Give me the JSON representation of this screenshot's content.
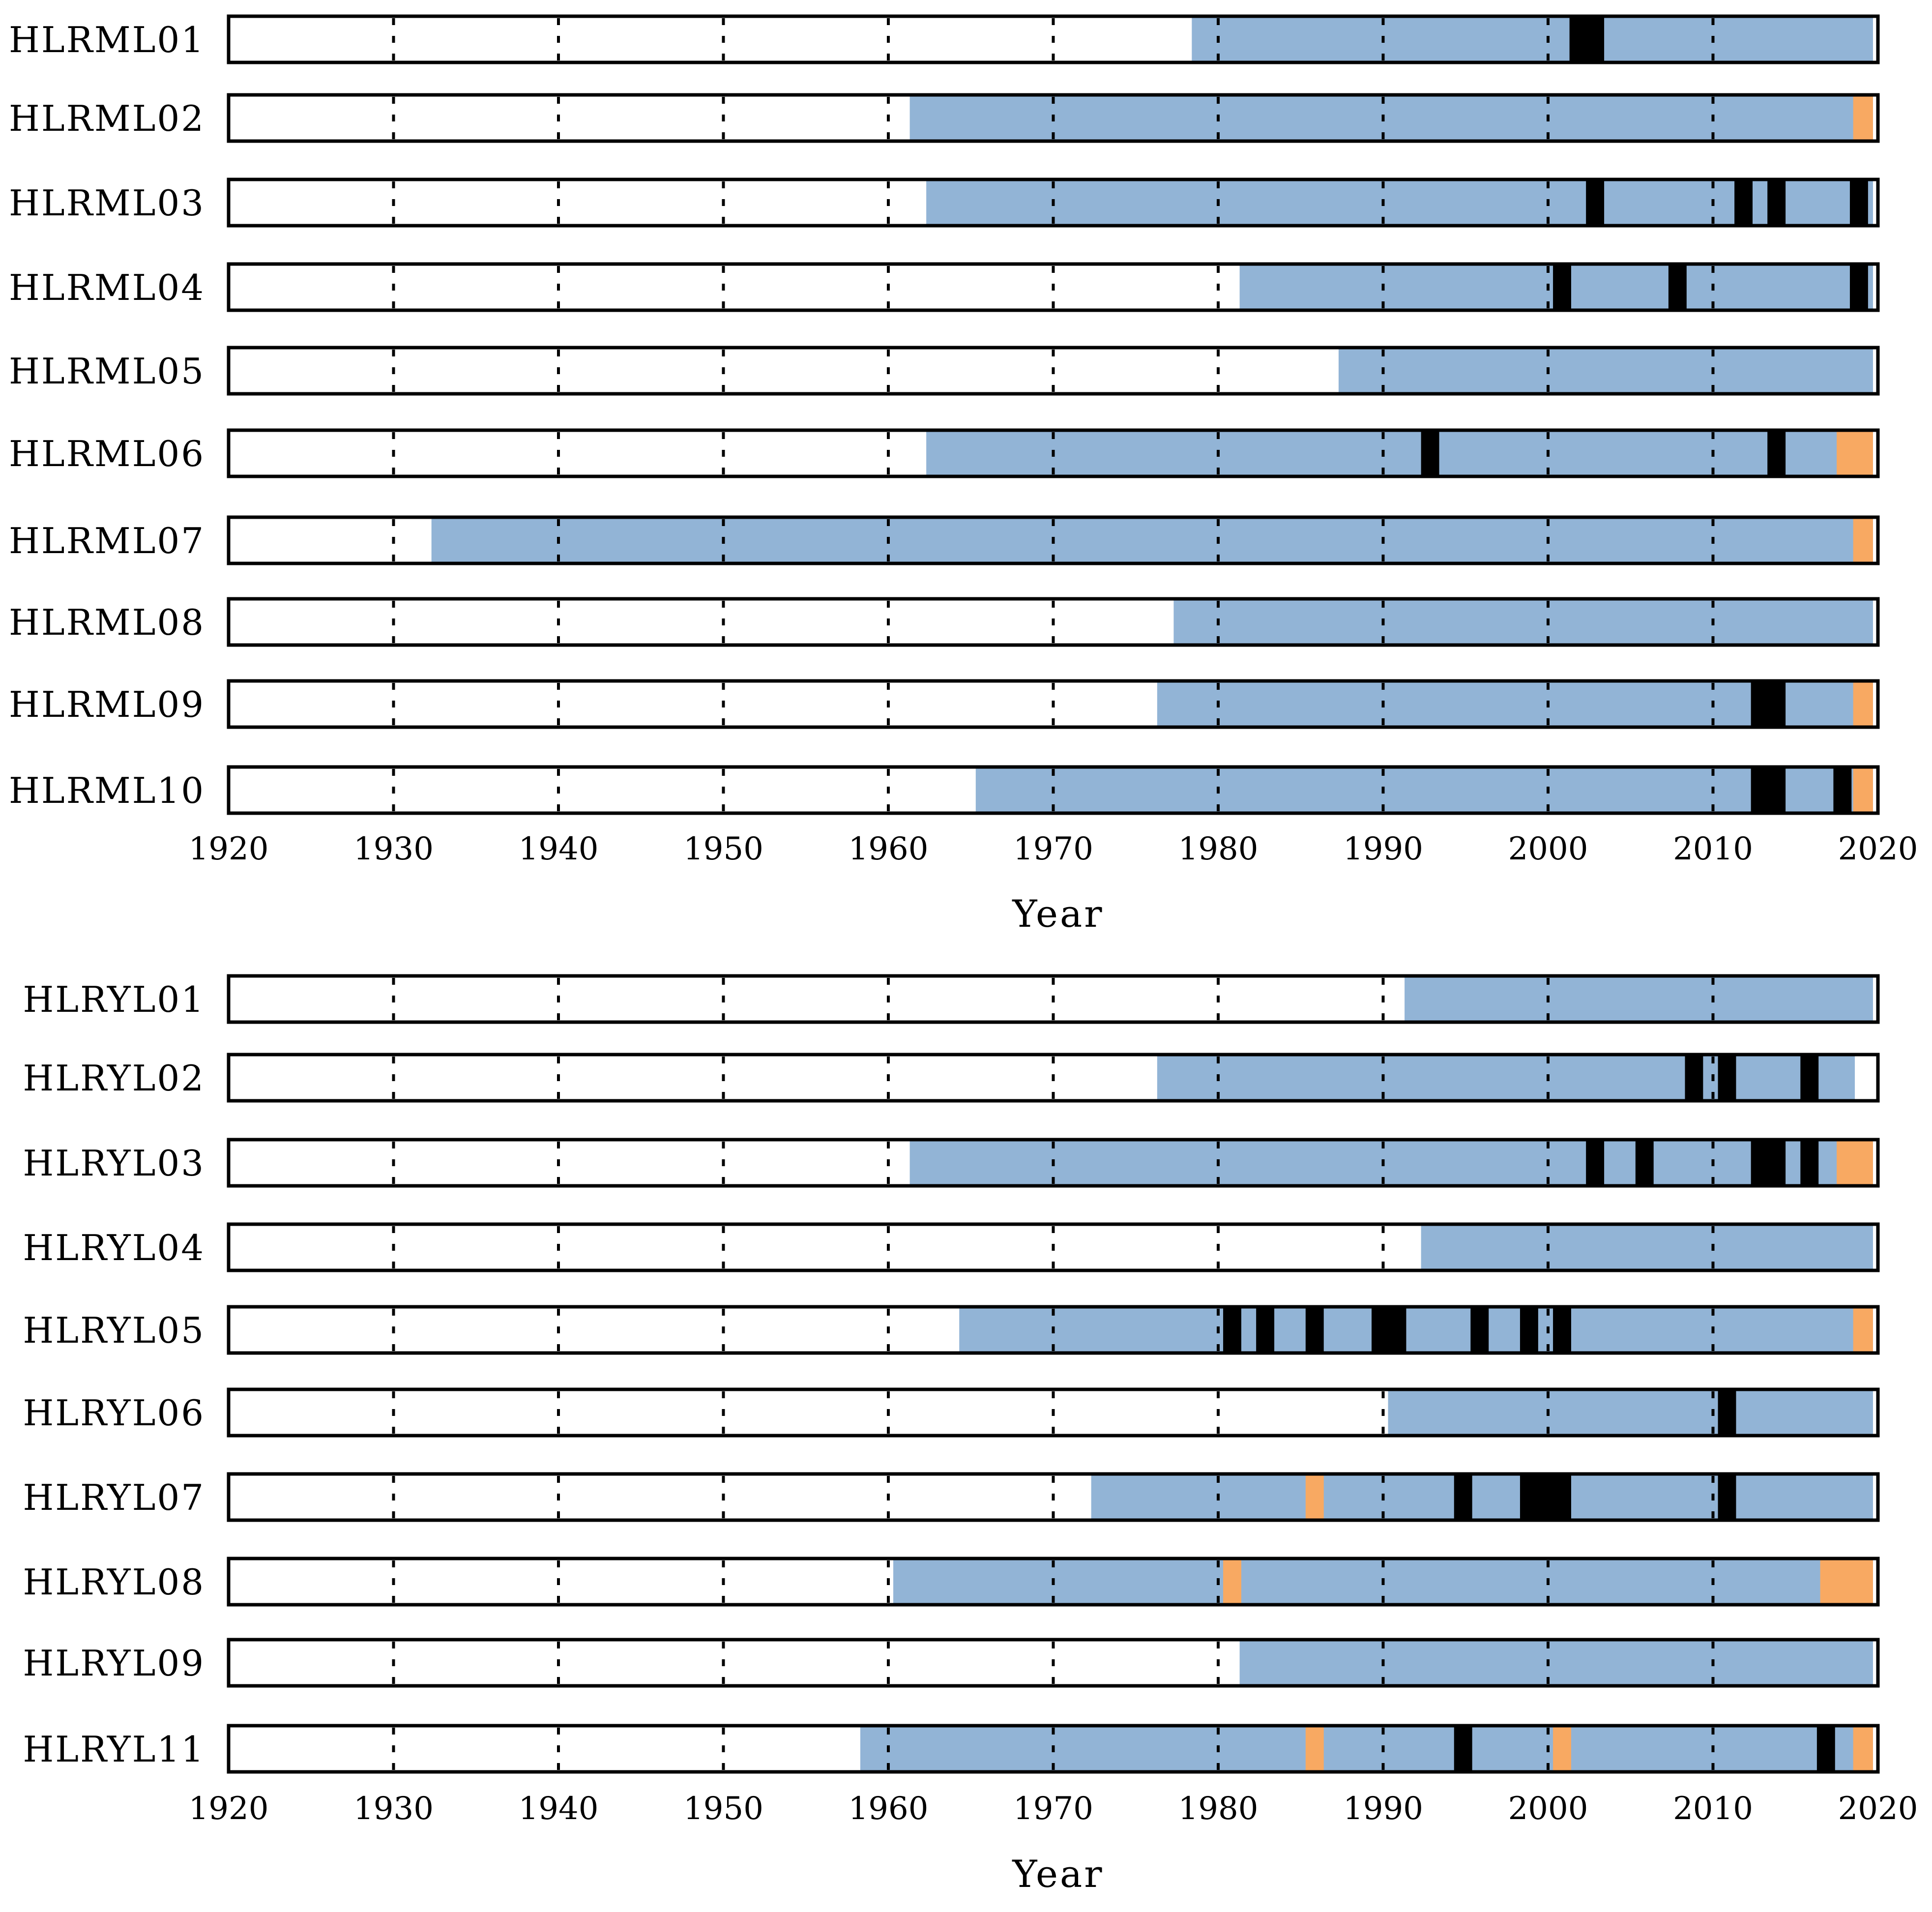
{
  "colors": {
    "record": "#92b4d6",
    "gap": "#000000",
    "highlight": "#f8a962",
    "frame": "#000000",
    "background": "#ffffff"
  },
  "chart_data": [
    {
      "type": "gantt",
      "xlabel": "Year",
      "xlim": [
        1920,
        2020
      ],
      "xticks": [
        "1920",
        "1930",
        "1940",
        "1950",
        "1960",
        "1970",
        "1980",
        "1990",
        "2000",
        "2010",
        "2020"
      ],
      "grid": "dashed-vertical",
      "rows": [
        {
          "label": "HLRML01",
          "start": 1978.4,
          "end": 2019.7,
          "gaps": [
            [
              2001.3,
              2003.4
            ]
          ],
          "highlights": []
        },
        {
          "label": "HLRML02",
          "start": 1961.3,
          "end": 2019.7,
          "gaps": [],
          "highlights": [
            [
              2018.5,
              2019.7
            ]
          ]
        },
        {
          "label": "HLRML03",
          "start": 1962.3,
          "end": 2019.7,
          "gaps": [
            [
              2002.3,
              2003.4
            ],
            [
              2011.3,
              2012.4
            ],
            [
              2013.3,
              2014.4
            ],
            [
              2018.3,
              2019.4
            ]
          ],
          "highlights": []
        },
        {
          "label": "HLRML04",
          "start": 1981.3,
          "end": 2019.7,
          "gaps": [
            [
              2000.3,
              2001.4
            ],
            [
              2007.3,
              2008.4
            ],
            [
              2018.3,
              2019.4
            ]
          ],
          "highlights": []
        },
        {
          "label": "HLRML05",
          "start": 1987.3,
          "end": 2019.7,
          "gaps": [],
          "highlights": []
        },
        {
          "label": "HLRML06",
          "start": 1962.3,
          "end": 2019.7,
          "gaps": [
            [
              1992.3,
              1993.4
            ],
            [
              2013.3,
              2014.4
            ]
          ],
          "highlights": [
            [
              2017.5,
              2019.7
            ]
          ]
        },
        {
          "label": "HLRML07",
          "start": 1932.3,
          "end": 2019.7,
          "gaps": [],
          "highlights": [
            [
              2018.5,
              2019.7
            ]
          ]
        },
        {
          "label": "HLRML08",
          "start": 1977.3,
          "end": 2019.7,
          "gaps": [],
          "highlights": []
        },
        {
          "label": "HLRML09",
          "start": 1976.3,
          "end": 2019.7,
          "gaps": [
            [
              2012.3,
              2014.4
            ]
          ],
          "highlights": [
            [
              2018.5,
              2019.7
            ]
          ]
        },
        {
          "label": "HLRML10",
          "start": 1965.3,
          "end": 2019.7,
          "gaps": [
            [
              2012.3,
              2014.4
            ],
            [
              2017.3,
              2018.4
            ]
          ],
          "highlights": [
            [
              2018.5,
              2019.7
            ]
          ]
        }
      ]
    },
    {
      "type": "gantt",
      "xlabel": "Year",
      "xlim": [
        1920,
        2020
      ],
      "xticks": [
        "1920",
        "1930",
        "1940",
        "1950",
        "1960",
        "1970",
        "1980",
        "1990",
        "2000",
        "2010",
        "2020"
      ],
      "grid": "dashed-vertical",
      "rows": [
        {
          "label": "HLRYL01",
          "start": 1991.3,
          "end": 2019.7,
          "gaps": [],
          "highlights": []
        },
        {
          "label": "HLRYL02",
          "start": 1976.3,
          "end": 2018.6,
          "gaps": [
            [
              2008.3,
              2009.4
            ],
            [
              2010.3,
              2011.4
            ],
            [
              2015.3,
              2016.4
            ]
          ],
          "highlights": []
        },
        {
          "label": "HLRYL03",
          "start": 1961.3,
          "end": 2019.7,
          "gaps": [
            [
              2002.3,
              2003.4
            ],
            [
              2005.3,
              2006.4
            ],
            [
              2012.3,
              2014.4
            ],
            [
              2015.3,
              2016.4
            ]
          ],
          "highlights": [
            [
              2017.5,
              2019.7
            ]
          ]
        },
        {
          "label": "HLRYL04",
          "start": 1992.3,
          "end": 2019.7,
          "gaps": [],
          "highlights": []
        },
        {
          "label": "HLRYL05",
          "start": 1964.3,
          "end": 2019.7,
          "gaps": [
            [
              1980.3,
              1981.4
            ],
            [
              1982.3,
              1983.4
            ],
            [
              1985.3,
              1986.4
            ],
            [
              1989.3,
              1991.4
            ],
            [
              1995.3,
              1996.4
            ],
            [
              1998.3,
              1999.4
            ],
            [
              2000.3,
              2001.4
            ]
          ],
          "highlights": [
            [
              2018.5,
              2019.7
            ]
          ]
        },
        {
          "label": "HLRYL06",
          "start": 1990.3,
          "end": 2019.7,
          "gaps": [
            [
              2010.3,
              2011.4
            ]
          ],
          "highlights": []
        },
        {
          "label": "HLRYL07",
          "start": 1972.3,
          "end": 2019.7,
          "gaps": [
            [
              1994.3,
              1995.4
            ],
            [
              1998.3,
              2001.4
            ],
            [
              2010.3,
              2011.4
            ]
          ],
          "highlights": [
            [
              1985.3,
              1986.4
            ]
          ]
        },
        {
          "label": "HLRYL08",
          "start": 1960.3,
          "end": 2019.7,
          "gaps": [],
          "highlights": [
            [
              1980.3,
              1981.4
            ],
            [
              2016.5,
              2019.7
            ]
          ]
        },
        {
          "label": "HLRYL09",
          "start": 1981.3,
          "end": 2019.7,
          "gaps": [],
          "highlights": []
        },
        {
          "label": "HLRYL11",
          "start": 1958.3,
          "end": 2019.7,
          "gaps": [
            [
              1994.3,
              1995.4
            ],
            [
              2016.3,
              2017.4
            ]
          ],
          "highlights": [
            [
              1985.3,
              1986.4
            ],
            [
              2000.3,
              2001.4
            ],
            [
              2018.5,
              2019.7
            ]
          ]
        }
      ]
    }
  ]
}
